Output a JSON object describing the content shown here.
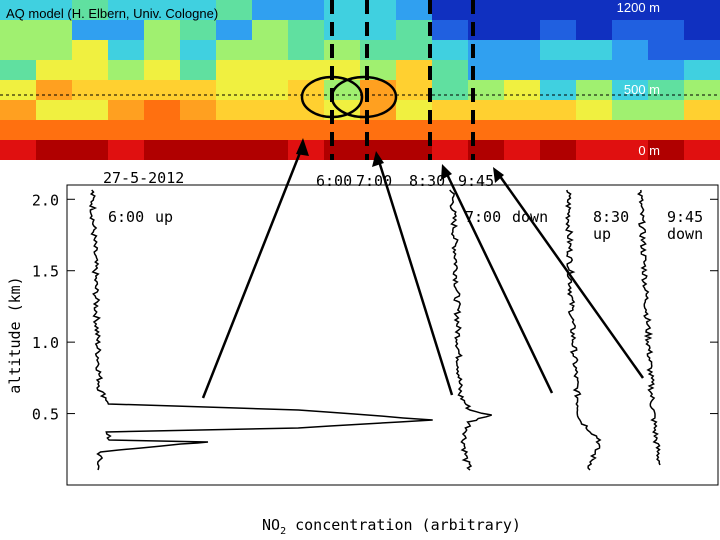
{
  "header": {
    "title": "AQ model  (H. Elbern, Univ. Cologne)",
    "levels": [
      "1200 m",
      "500 m",
      "0 m"
    ]
  },
  "date": "27-5-2012",
  "times": [
    "6:00",
    "7:00",
    "8:30",
    "9:45"
  ],
  "profiles": [
    {
      "time": "6:00",
      "direction": "up"
    },
    {
      "time": "7:00",
      "direction": "down"
    },
    {
      "time": "8:30",
      "direction": "up"
    },
    {
      "time": "9:45",
      "direction": "down"
    }
  ],
  "plot": {
    "y_label": "altitude (km)",
    "x_label": {
      "species": "NO",
      "subscript": "2",
      "rest": " concentration (arbitrary)"
    },
    "ylim": [
      0,
      2.1
    ],
    "yticks": [
      {
        "value": 2,
        "label": "2.0"
      },
      {
        "value": 1.5,
        "label": "1.5"
      },
      {
        "value": 1,
        "label": "1.0"
      },
      0.5
    ]
  }
}
